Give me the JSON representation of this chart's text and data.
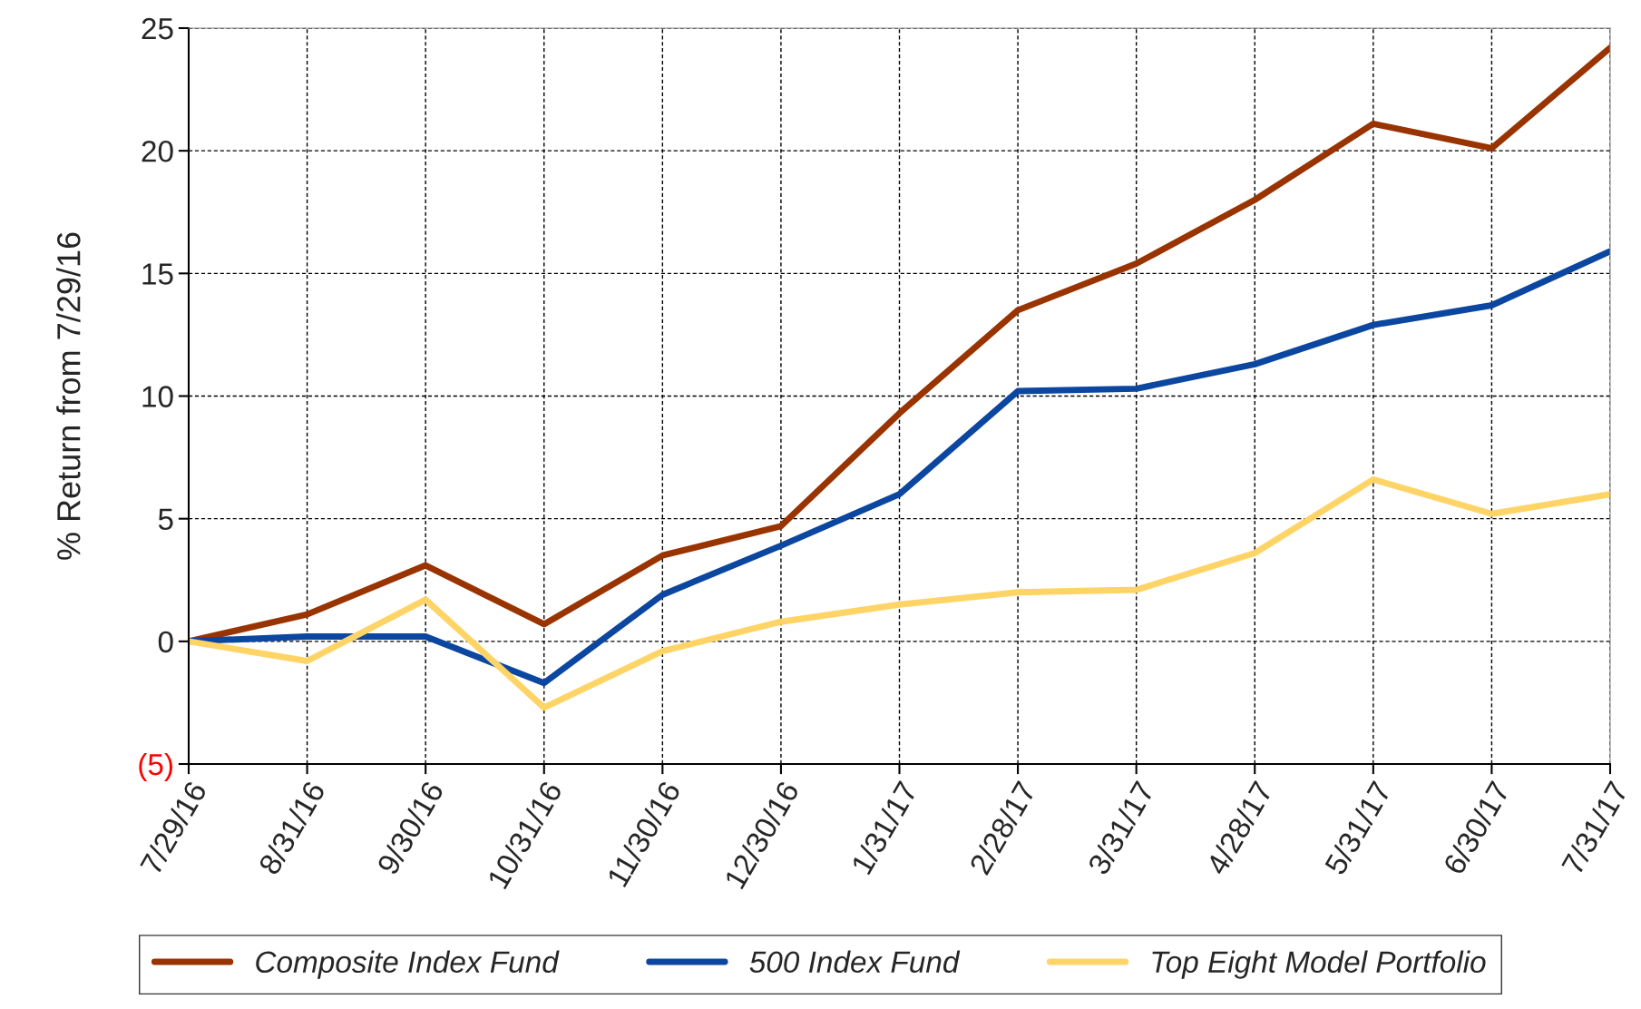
{
  "chart_data": {
    "type": "line",
    "ylabel": "% Return from 7/29/16",
    "categories": [
      "7/29/16",
      "8/31/16",
      "9/30/16",
      "10/31/16",
      "11/30/16",
      "12/30/16",
      "1/31/17",
      "2/28/17",
      "3/31/17",
      "4/28/17",
      "5/31/17",
      "6/30/17",
      "7/31/17"
    ],
    "series": [
      {
        "name": "Composite Index Fund",
        "color": "#993300",
        "values": [
          0,
          1.1,
          3.1,
          0.7,
          3.5,
          4.7,
          9.3,
          13.5,
          15.4,
          18.0,
          21.1,
          20.1,
          24.2
        ]
      },
      {
        "name": "500 Index Fund",
        "color": "#0b46a0",
        "values": [
          0,
          0.2,
          0.2,
          -1.7,
          1.9,
          3.9,
          6.0,
          10.2,
          10.3,
          11.3,
          12.9,
          13.7,
          15.9
        ]
      },
      {
        "name": "Top Eight Model Portfolio",
        "color": "#ffd466",
        "values": [
          0,
          -0.8,
          1.7,
          -2.7,
          -0.4,
          0.8,
          1.5,
          2.0,
          2.1,
          3.6,
          6.6,
          5.2,
          6.0
        ]
      }
    ],
    "ylim": [
      -5,
      25
    ],
    "yticks": [
      {
        "value": -5,
        "label": "(5)"
      },
      0,
      5,
      10,
      15,
      20,
      25
    ],
    "grid": true,
    "legend": "bottom",
    "line_style": "solid",
    "marker": "none"
  }
}
